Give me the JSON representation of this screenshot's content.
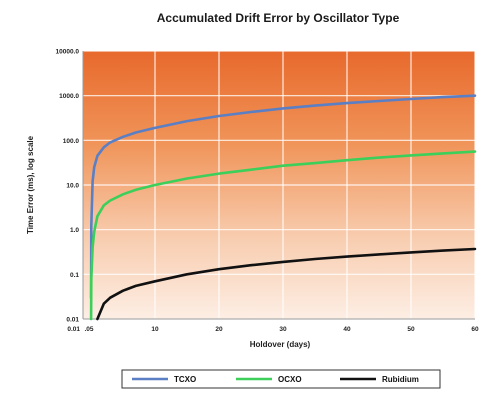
{
  "chart_data": {
    "type": "line",
    "title": "Accumulated Drift Error by Oscillator Type",
    "xlabel": "Holdover (days)",
    "ylabel": "Time Error (ms), log scale",
    "y_scale": "log",
    "xlim": [
      0,
      60
    ],
    "ylim": [
      0.01,
      10000
    ],
    "x_tick_labels": [
      "0.01",
      ".05",
      "10",
      "20",
      "30",
      "40",
      "50",
      "60"
    ],
    "y_tick_labels": [
      "10000.0",
      "1000.0",
      "100.0",
      "10.0",
      "1.0",
      "0.1",
      "0.01"
    ],
    "grid": true,
    "legend_position": "bottom",
    "series": [
      {
        "name": "TCXO",
        "color": "#5b7fc4",
        "x": [
          0.01,
          0.05,
          0.25,
          0.5,
          1,
          2,
          3,
          5,
          7,
          10,
          15,
          20,
          25,
          30,
          35,
          40,
          45,
          50,
          55,
          60
        ],
        "y": [
          0.03,
          1.2,
          12,
          25,
          45,
          70,
          90,
          120,
          150,
          190,
          270,
          350,
          430,
          520,
          600,
          680,
          760,
          840,
          930,
          1000
        ]
      },
      {
        "name": "OCXO",
        "color": "#3ccf5a",
        "x": [
          0.01,
          0.05,
          0.25,
          0.5,
          1,
          2,
          3,
          5,
          7,
          10,
          15,
          20,
          25,
          30,
          35,
          40,
          45,
          50,
          55,
          60
        ],
        "y": [
          0.01,
          0.08,
          0.4,
          0.9,
          2,
          3.5,
          4.5,
          6.2,
          7.8,
          10,
          14,
          18,
          22,
          27,
          31,
          36,
          41,
          46,
          51,
          56
        ]
      },
      {
        "name": "Rubidium",
        "color": "#111111",
        "x": [
          1,
          2,
          3,
          5,
          7,
          10,
          15,
          20,
          25,
          30,
          35,
          40,
          45,
          50,
          55,
          60
        ],
        "y": [
          0.01,
          0.022,
          0.03,
          0.043,
          0.055,
          0.07,
          0.1,
          0.13,
          0.16,
          0.19,
          0.22,
          0.25,
          0.28,
          0.31,
          0.34,
          0.37
        ]
      }
    ]
  }
}
